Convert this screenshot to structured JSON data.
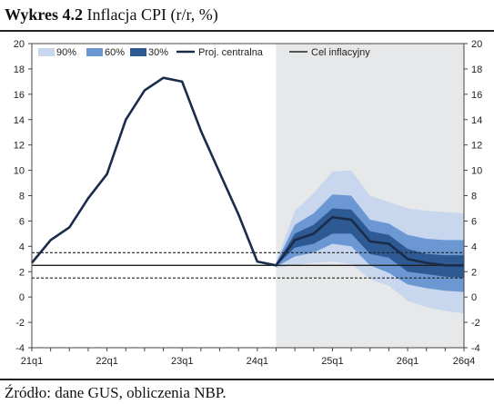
{
  "header": {
    "label": "Wykres 4.2",
    "title": "Inflacja CPI (r/r, %)"
  },
  "footer": {
    "source": "Źródło: dane GUS, obliczenia NBP."
  },
  "chart_data": {
    "type": "line",
    "title": "Wykres 4.2 Inflacja CPI (r/r, %)",
    "xlabel": "",
    "ylabel": "",
    "ylim": [
      -4,
      20
    ],
    "y_ticks": [
      -4,
      -2,
      0,
      2,
      4,
      6,
      8,
      10,
      12,
      14,
      16,
      18,
      20
    ],
    "y_tick_labels": [
      "-4",
      "-2",
      "0",
      "2",
      "4",
      "6",
      "8",
      "10",
      "12",
      "14",
      "16",
      "18",
      "20"
    ],
    "x_tick_labels": [
      "21q1",
      "22q1",
      "23q1",
      "24q1",
      "25q1",
      "26q1",
      "26q4"
    ],
    "x_tick_index": [
      0,
      4,
      8,
      12,
      16,
      20,
      23
    ],
    "categories": [
      "21q1",
      "21q2",
      "21q3",
      "21q4",
      "22q1",
      "22q2",
      "22q3",
      "22q4",
      "23q1",
      "23q2",
      "23q3",
      "23q4",
      "24q1",
      "24q2",
      "24q3",
      "24q4",
      "25q1",
      "25q2",
      "25q3",
      "25q4",
      "26q1",
      "26q2",
      "26q3",
      "26q4"
    ],
    "legend_position": "top",
    "grid": false,
    "forecast_start": "24q2",
    "legend": [
      {
        "label": "90%",
        "color": "#c8d7ed",
        "kind": "band"
      },
      {
        "label": "60%",
        "color": "#6b98d3",
        "kind": "band"
      },
      {
        "label": "30%",
        "color": "#2e5a94",
        "kind": "band"
      },
      {
        "label": "Proj. centralna",
        "color": "#1b2c4b",
        "kind": "line"
      },
      {
        "label": "Cel inflacyjny",
        "color": "#222222",
        "kind": "line"
      }
    ],
    "series": [
      {
        "name": "Proj. centralna",
        "color": "#1b2c4b",
        "x": [
          "21q1",
          "21q2",
          "21q3",
          "21q4",
          "22q1",
          "22q2",
          "22q3",
          "22q4",
          "23q1",
          "23q2",
          "23q3",
          "23q4",
          "24q1",
          "24q2",
          "24q3",
          "24q4",
          "25q1",
          "25q2",
          "25q3",
          "25q4",
          "26q1",
          "26q2",
          "26q3",
          "26q4"
        ],
        "values": [
          2.7,
          4.5,
          5.5,
          7.8,
          9.7,
          14.0,
          16.3,
          17.3,
          17.0,
          13.1,
          9.8,
          6.5,
          2.8,
          2.5,
          4.5,
          5.0,
          6.3,
          6.1,
          4.4,
          4.2,
          3.0,
          2.7,
          2.5,
          2.5
        ]
      }
    ],
    "fan_bands": {
      "x": [
        "24q2",
        "24q3",
        "24q4",
        "25q1",
        "25q2",
        "25q3",
        "25q4",
        "26q1",
        "26q2",
        "26q3",
        "26q4"
      ],
      "p90_lower": [
        2.3,
        2.5,
        2.7,
        2.8,
        2.6,
        1.4,
        0.9,
        -0.3,
        -0.8,
        -1.1,
        -1.3
      ],
      "p90_upper": [
        2.8,
        6.8,
        8.2,
        9.9,
        10.0,
        8.0,
        7.5,
        7.0,
        6.8,
        6.7,
        6.6
      ],
      "p60_lower": [
        2.4,
        3.2,
        3.5,
        4.2,
        4.0,
        2.5,
        1.9,
        1.0,
        0.7,
        0.5,
        0.4
      ],
      "p60_upper": [
        2.7,
        5.7,
        6.6,
        8.1,
        8.0,
        6.1,
        5.8,
        4.9,
        4.6,
        4.5,
        4.5
      ],
      "p30_lower": [
        2.45,
        3.9,
        4.2,
        5.0,
        5.0,
        3.4,
        3.1,
        2.0,
        1.8,
        1.6,
        1.5
      ],
      "p30_upper": [
        2.6,
        5.0,
        5.7,
        7.0,
        6.9,
        5.2,
        4.9,
        3.8,
        3.4,
        3.3,
        3.3
      ]
    },
    "reference_lines": [
      {
        "name": "Cel inflacyjny",
        "value": 2.5,
        "style": "solid"
      },
      {
        "name": "upper tolerance",
        "value": 3.5,
        "style": "dashed"
      },
      {
        "name": "lower tolerance",
        "value": 1.5,
        "style": "dashed"
      }
    ]
  }
}
